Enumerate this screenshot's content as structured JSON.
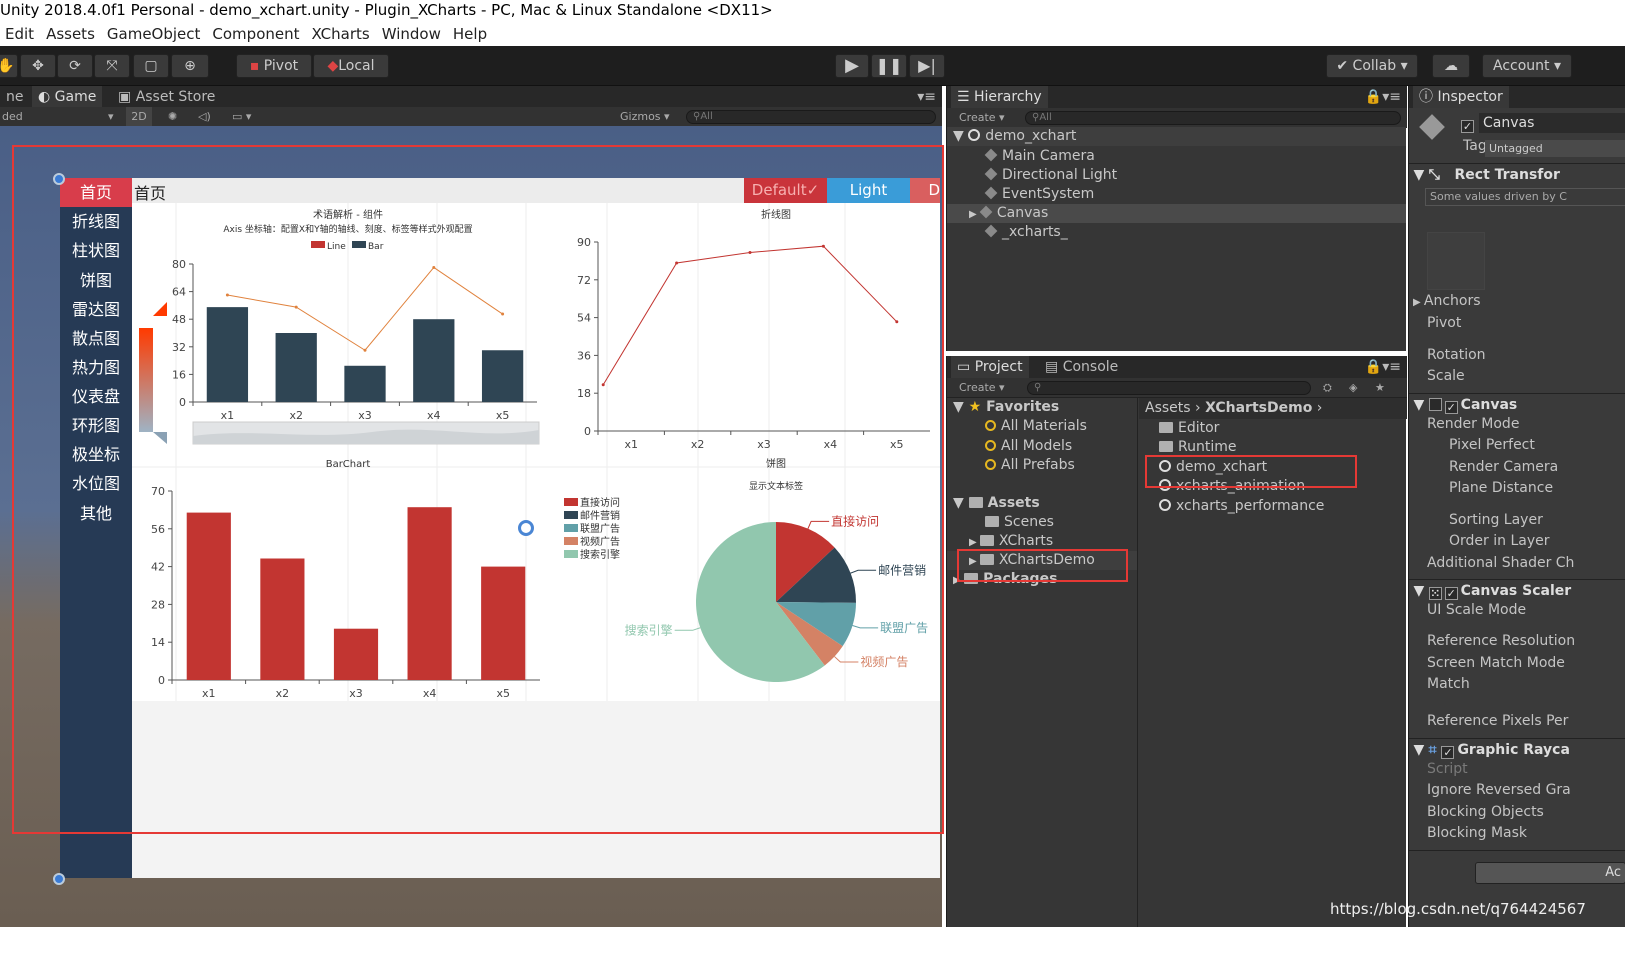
{
  "window": {
    "title": "Unity 2018.4.0f1 Personal - demo_xchart.unity - Plugin_XCharts - PC, Mac & Linux Standalone <DX11>"
  },
  "menu": [
    "Edit",
    "Assets",
    "GameObject",
    "Component",
    "XCharts",
    "Window",
    "Help"
  ],
  "toolbar": {
    "pivot": "Pivot",
    "local": "Local",
    "collab": "Collab",
    "account": "Account"
  },
  "scene_tabs": {
    "scene": "ne",
    "game": "Game",
    "asset_store": "Asset Store"
  },
  "game_bar": {
    "display": "ded",
    "mode_2d": "2D",
    "gizmos": "Gizmos",
    "search_placeholder": "All"
  },
  "demo": {
    "sidebar": [
      "首页",
      "折线图",
      "柱状图",
      "饼图",
      "雷达图",
      "散点图",
      "热力图",
      "仪表盘",
      "环形图",
      "极坐标",
      "水位图",
      "其他"
    ],
    "header_title": "首页",
    "themes": [
      "Default",
      "Light",
      "D"
    ],
    "chart1": {
      "title": "术语解析 - 组件",
      "subtitle": "Axis 坐标轴：配置X和Y轴的轴线、刻度、标签等样式外观配置",
      "legend": [
        "Line",
        "Bar"
      ]
    },
    "chart2": {
      "title": "折线图"
    },
    "chart3": {
      "title": "BarChart"
    },
    "chart4": {
      "title": "饼图",
      "subtitle": "显示文本标签"
    }
  },
  "chart_data": [
    {
      "type": "bar",
      "title": "术语解析 - 组件",
      "subtitle": "Axis 坐标轴：配置X和Y轴的轴线、刻度、标签等样式外观配置",
      "categories": [
        "x1",
        "x2",
        "x3",
        "x4",
        "x5"
      ],
      "series": [
        {
          "name": "Line",
          "type": "line",
          "values": [
            62,
            55,
            30,
            78,
            51
          ]
        },
        {
          "name": "Bar",
          "type": "bar",
          "values": [
            55,
            40,
            21,
            48,
            30
          ]
        }
      ],
      "ylim": [
        0,
        80
      ],
      "yticks": [
        0,
        16,
        32,
        48,
        64,
        80
      ],
      "legend": "top",
      "grid": false
    },
    {
      "type": "line",
      "title": "折线图",
      "categories": [
        "x1",
        "x2",
        "x3",
        "x4",
        "x5"
      ],
      "series": [
        {
          "values": [
            22,
            80,
            85,
            88,
            52
          ]
        }
      ],
      "ylim": [
        0,
        90
      ],
      "yticks": [
        0,
        18,
        36,
        54,
        72,
        90
      ]
    },
    {
      "type": "bar",
      "title": "BarChart",
      "categories": [
        "x1",
        "x2",
        "x3",
        "x4",
        "x5"
      ],
      "series": [
        {
          "values": [
            62,
            45,
            19,
            64,
            42
          ]
        }
      ],
      "ylim": [
        0,
        70
      ],
      "yticks": [
        0,
        14,
        28,
        42,
        56,
        70
      ]
    },
    {
      "type": "pie",
      "title": "饼图",
      "subtitle": "显示文本标签",
      "labels": [
        "直接访问",
        "邮件营销",
        "联盟广告",
        "视频广告",
        "搜索引擎"
      ],
      "values": [
        335,
        310,
        234,
        135,
        1548
      ],
      "colors": [
        "#c23531",
        "#2f4554",
        "#61a0a8",
        "#d48265",
        "#91c7ae"
      ],
      "legend": "left"
    }
  ],
  "hierarchy": {
    "tab": "Hierarchy",
    "create": "Create",
    "search_placeholder": "All",
    "scene": "demo_xchart",
    "items": [
      "Main Camera",
      "Directional Light",
      "EventSystem",
      "Canvas",
      "_xcharts_"
    ]
  },
  "project": {
    "tabs": [
      "Project",
      "Console"
    ],
    "create": "Create",
    "favorites": "Favorites",
    "favorite_items": [
      "All Materials",
      "All Models",
      "All Prefabs"
    ],
    "assets": "Assets",
    "asset_items": [
      "Scenes",
      "XCharts",
      "XChartsDemo"
    ],
    "packages": "Packages",
    "breadcrumb": [
      "Assets",
      "XChartsDemo"
    ],
    "files": [
      "Editor",
      "Runtime",
      "demo_xchart",
      "xcharts_animation",
      "xcharts_performance"
    ]
  },
  "inspector": {
    "tab": "Inspector",
    "object_name": "Canvas",
    "tag_label": "Tag",
    "tag_value": "Untagged",
    "rect_transform": "Rect Transfor",
    "rect_note": "Some values driven by C",
    "rect_rows": [
      "Anchors",
      "Pivot",
      "Rotation",
      "Scale"
    ],
    "canvas": "Canvas",
    "canvas_rows": [
      "Render Mode",
      "Pixel Perfect",
      "Render Camera",
      "Plane Distance",
      "Sorting Layer",
      "Order in Layer",
      "Additional Shader Ch"
    ],
    "canvas_scaler": "Canvas Scaler",
    "scaler_rows": [
      "UI Scale Mode",
      "Reference Resolution",
      "Screen Match Mode",
      "Match",
      "Reference Pixels Per"
    ],
    "raycaster": "Graphic Rayca",
    "raycaster_rows": [
      "Script",
      "Ignore Reversed Gra",
      "Blocking Objects",
      "Blocking Mask"
    ],
    "add_component": "Ac"
  },
  "watermark": "https://blog.csdn.net/q764424567"
}
